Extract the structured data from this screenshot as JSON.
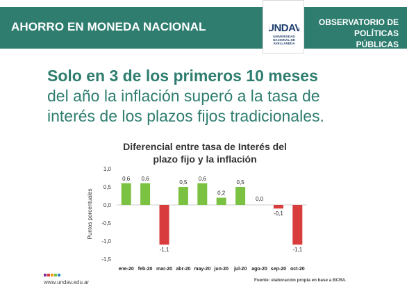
{
  "header": {
    "left_title": "AHORRO EN MONEDA NACIONAL",
    "logo_text": "UNDAV",
    "logo_subtitle": "UNIVERSIDAD NACIONAL DE AVELLANEDA",
    "right_title_line1": "OBSERVATORIO DE",
    "right_title_line2": "POLÍTICAS PÚBLICAS"
  },
  "headline": {
    "bold_line": "Solo en 3 de los primeros 10 meses",
    "line2": "del año la inflación superó a la tasa de",
    "line3": "interés de los plazos fijos tradicionales."
  },
  "footer": {
    "url": "www.undav.edu.ar",
    "source": "Fuente: elaboración propia en base a BCRA."
  },
  "colors": {
    "brand_green": "#2e7d6f",
    "positive_bar": "#7cc242",
    "negative_bar": "#d93c3c",
    "logo_blue": "#1f3f6e"
  },
  "chart_data": {
    "type": "bar",
    "title_line1": "Diferencial entre tasa de Interés del",
    "title_line2": "plazo fijo y la inflación",
    "ylabel": "Puntos porcentuales",
    "xlabel": "",
    "ylim": [
      -1.5,
      1.0
    ],
    "yticks": [
      1.0,
      0.5,
      0.0,
      -0.5,
      -1.0,
      -1.5
    ],
    "ytick_labels": [
      "1,0",
      "0,5",
      "0,0",
      "-0,5",
      "-1,0",
      "-1,5"
    ],
    "categories": [
      "ene-20",
      "feb-20",
      "mar-20",
      "abr-20",
      "may-20",
      "jun-20",
      "jul-20",
      "ago-20",
      "sep-20",
      "oct-20"
    ],
    "values": [
      0.6,
      0.6,
      -1.1,
      0.5,
      0.6,
      0.2,
      0.5,
      0.0,
      -0.1,
      -1.1
    ],
    "value_labels": [
      "0,6",
      "0,6",
      "-1,1",
      "0,5",
      "0,6",
      "0,2",
      "0,5",
      "0,0",
      "-0,1",
      "-1,1"
    ],
    "grid": false,
    "legend": "none"
  }
}
